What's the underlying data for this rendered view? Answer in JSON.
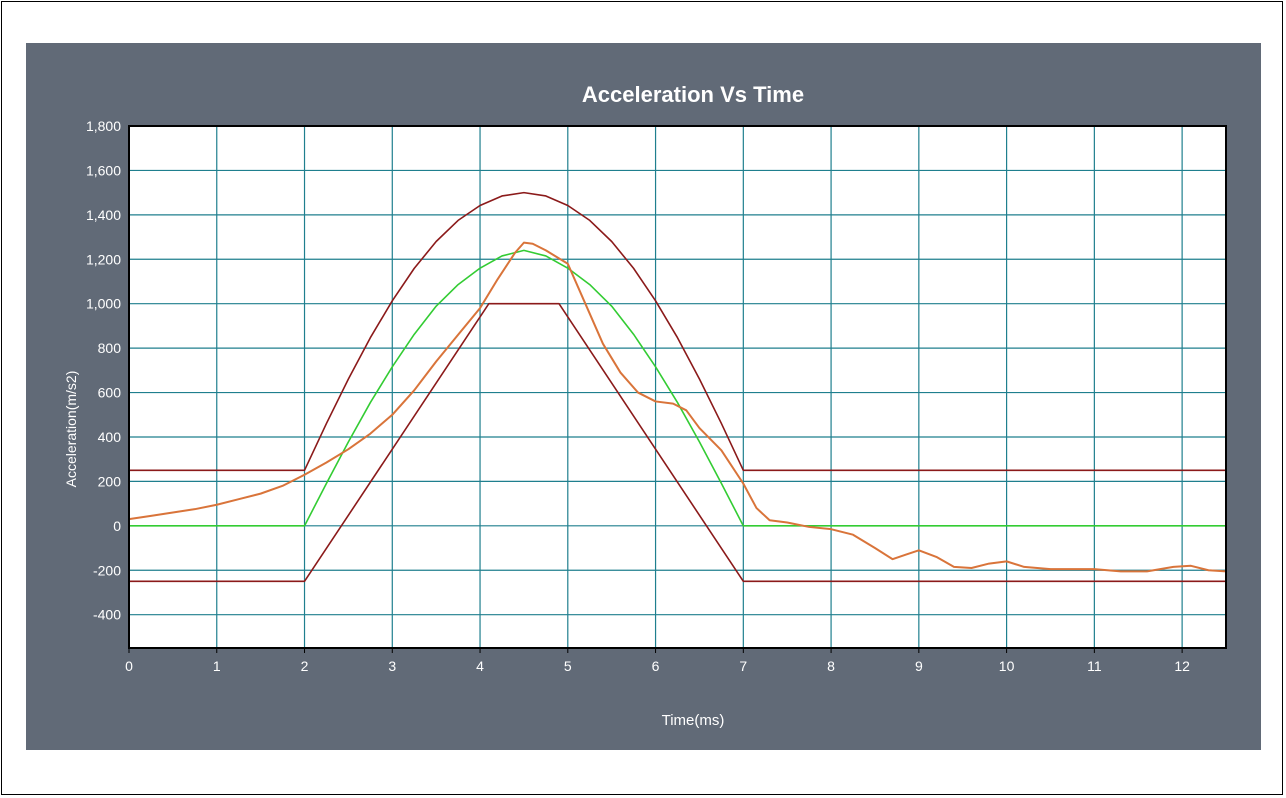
{
  "chart_data": {
    "type": "line",
    "title": "Acceleration Vs Time",
    "xlabel": "Time(ms)",
    "ylabel": "Acceleration(m/s2)",
    "xlim": [
      0,
      12.5
    ],
    "ylim": [
      -550,
      1800
    ],
    "x_ticks": [
      0,
      1,
      2,
      3,
      4,
      5,
      6,
      7,
      8,
      9,
      10,
      11,
      12
    ],
    "y_ticks": [
      -400,
      -200,
      0,
      200,
      400,
      600,
      800,
      1000,
      1200,
      1400,
      1600,
      1800
    ],
    "x_tick_labels": [
      "0",
      "1",
      "2",
      "3",
      "4",
      "5",
      "6",
      "7",
      "8",
      "9",
      "10",
      "11",
      "12"
    ],
    "y_tick_labels": [
      "-400",
      "-200",
      "0",
      "200",
      "400",
      "600",
      "800",
      "1,000",
      "1,200",
      "1,400",
      "1,600",
      "1,800"
    ],
    "grid": true,
    "legend": "none",
    "colors": {
      "panel_bg": "#616a77",
      "plot_bg": "#ffffff",
      "grid": "#1f7f8e",
      "axis_text": "#ffffff",
      "upper_corridor": "#8b1a1a",
      "lower_corridor": "#8b1a1a",
      "reference_pulse": "#33cc33",
      "measured": "#d9743a"
    },
    "series": [
      {
        "color": "#8b1a1a",
        "points": [
          [
            0,
            250
          ],
          [
            2,
            250
          ],
          [
            2.25,
            461
          ],
          [
            2.5,
            661
          ],
          [
            2.75,
            847
          ],
          [
            3,
            1013
          ],
          [
            3.25,
            1159
          ],
          [
            3.5,
            1280
          ],
          [
            3.75,
            1375
          ],
          [
            4,
            1442
          ],
          [
            4.25,
            1485
          ],
          [
            4.5,
            1500
          ],
          [
            4.75,
            1485
          ],
          [
            5,
            1442
          ],
          [
            5.25,
            1375
          ],
          [
            5.5,
            1280
          ],
          [
            5.75,
            1159
          ],
          [
            6,
            1013
          ],
          [
            6.25,
            847
          ],
          [
            6.5,
            661
          ],
          [
            6.75,
            461
          ],
          [
            7,
            250
          ],
          [
            12.5,
            250
          ]
        ]
      },
      {
        "color": "#8b1a1a",
        "points": [
          [
            0,
            -250
          ],
          [
            2,
            -250
          ],
          [
            4.1,
            1000
          ],
          [
            4.9,
            1000
          ],
          [
            7,
            -250
          ],
          [
            12.5,
            -250
          ]
        ]
      },
      {
        "color": "#33cc33",
        "points": [
          [
            0,
            0
          ],
          [
            2,
            0
          ],
          [
            2.25,
            191
          ],
          [
            2.5,
            378
          ],
          [
            2.75,
            555
          ],
          [
            3,
            716
          ],
          [
            3.25,
            862
          ],
          [
            3.5,
            989
          ],
          [
            3.75,
            1086
          ],
          [
            4,
            1160
          ],
          [
            4.25,
            1215
          ],
          [
            4.5,
            1240
          ],
          [
            4.75,
            1215
          ],
          [
            5,
            1160
          ],
          [
            5.25,
            1086
          ],
          [
            5.5,
            989
          ],
          [
            5.75,
            862
          ],
          [
            6,
            716
          ],
          [
            6.25,
            555
          ],
          [
            6.5,
            378
          ],
          [
            6.75,
            191
          ],
          [
            7,
            0
          ],
          [
            12.5,
            0
          ]
        ]
      },
      {
        "color": "#d9743a",
        "points": [
          [
            0,
            30
          ],
          [
            0.25,
            45
          ],
          [
            0.5,
            60
          ],
          [
            0.75,
            75
          ],
          [
            1,
            95
          ],
          [
            1.25,
            120
          ],
          [
            1.5,
            145
          ],
          [
            1.75,
            180
          ],
          [
            2,
            230
          ],
          [
            2.25,
            285
          ],
          [
            2.5,
            345
          ],
          [
            2.75,
            415
          ],
          [
            3,
            500
          ],
          [
            3.25,
            610
          ],
          [
            3.5,
            740
          ],
          [
            3.75,
            860
          ],
          [
            4,
            980
          ],
          [
            4.2,
            1110
          ],
          [
            4.4,
            1230
          ],
          [
            4.5,
            1275
          ],
          [
            4.6,
            1270
          ],
          [
            4.75,
            1240
          ],
          [
            5,
            1180
          ],
          [
            5.2,
            1000
          ],
          [
            5.4,
            820
          ],
          [
            5.6,
            690
          ],
          [
            5.8,
            600
          ],
          [
            6,
            560
          ],
          [
            6.2,
            550
          ],
          [
            6.35,
            520
          ],
          [
            6.5,
            440
          ],
          [
            6.75,
            340
          ],
          [
            7,
            190
          ],
          [
            7.15,
            80
          ],
          [
            7.3,
            25
          ],
          [
            7.5,
            15
          ],
          [
            7.75,
            -5
          ],
          [
            8,
            -15
          ],
          [
            8.25,
            -40
          ],
          [
            8.5,
            -100
          ],
          [
            8.7,
            -150
          ],
          [
            8.85,
            -130
          ],
          [
            9,
            -110
          ],
          [
            9.2,
            -140
          ],
          [
            9.4,
            -185
          ],
          [
            9.6,
            -190
          ],
          [
            9.8,
            -170
          ],
          [
            10,
            -160
          ],
          [
            10.2,
            -185
          ],
          [
            10.5,
            -195
          ],
          [
            11,
            -195
          ],
          [
            11.3,
            -205
          ],
          [
            11.6,
            -205
          ],
          [
            11.9,
            -185
          ],
          [
            12.1,
            -180
          ],
          [
            12.3,
            -200
          ],
          [
            12.5,
            -205
          ]
        ]
      }
    ]
  }
}
